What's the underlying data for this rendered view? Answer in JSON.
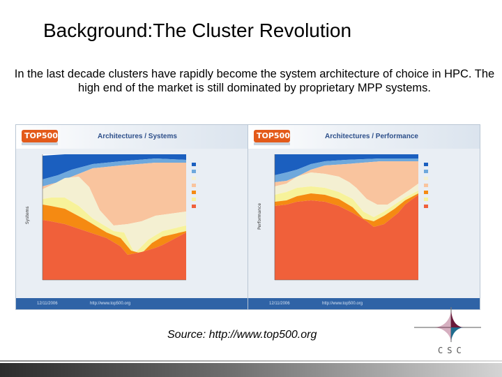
{
  "slide": {
    "title": "Background:The Cluster Revolution",
    "subtitle": "In the last decade clusters have rapidly become the system architecture of choice in HPC. The high end of the market is still dominated by proprietary MPP systems.",
    "source": "Source: http://www.top500.org",
    "logo_text": "CSC"
  },
  "panels": [
    {
      "logo": "TOP500",
      "title": "Architectures / Systems",
      "ylabel": "Systems",
      "footer_date": "12/11/2006",
      "footer_url": "http://www.top500.org"
    },
    {
      "logo": "TOP500",
      "title": "Architectures / Performance",
      "ylabel": "Performance",
      "footer_date": "12/11/2006",
      "footer_url": "http://www.top500.org"
    }
  ],
  "colors": {
    "mpp": "#f0603a",
    "smp": "#f7f29a",
    "cluster": "#f58a12",
    "constellations": "#f9c49e",
    "single_processor": "#f4f0d2",
    "simd": "#6ea8dc",
    "other": "#1b5fbf"
  }
}
